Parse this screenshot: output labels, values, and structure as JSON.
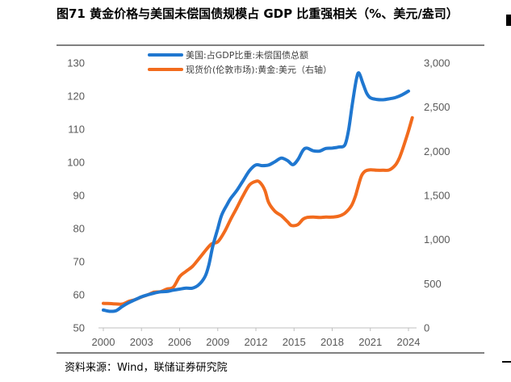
{
  "title": "图71 黄金价格与美国未偿国债规模占 GDP 比重强相关（%、美元/盎司）",
  "source": "资料来源：Wind，联储证券研究院",
  "chart_data": {
    "type": "line",
    "x_ticks": [
      "2000",
      "2003",
      "2006",
      "2009",
      "2012",
      "2015",
      "2018",
      "2021",
      "2024"
    ],
    "xlim": [
      2000,
      2024.3
    ],
    "ylim_left": [
      50,
      130
    ],
    "ylim_right": [
      0,
      3000
    ],
    "left_ticks": [
      "50",
      "60",
      "70",
      "80",
      "90",
      "100",
      "110",
      "120",
      "130"
    ],
    "right_ticks": [
      "0",
      "500",
      "1,000",
      "1,500",
      "2,000",
      "2,500",
      "3,000"
    ],
    "series": [
      {
        "name": "美国:占GDP比重:未偿国债总额",
        "axis": "left",
        "color": "#1f77d0",
        "points": [
          [
            2000.0,
            55.4
          ],
          [
            2000.5,
            55.0
          ],
          [
            2001.0,
            55.2
          ],
          [
            2001.5,
            56.5
          ],
          [
            2002.0,
            57.6
          ],
          [
            2002.5,
            58.5
          ],
          [
            2003.0,
            59.4
          ],
          [
            2003.5,
            60.0
          ],
          [
            2004.0,
            60.5
          ],
          [
            2004.5,
            60.9
          ],
          [
            2005.0,
            61.0
          ],
          [
            2005.5,
            61.4
          ],
          [
            2006.0,
            61.7
          ],
          [
            2006.5,
            62.0
          ],
          [
            2007.0,
            62.0
          ],
          [
            2007.5,
            63.0
          ],
          [
            2008.0,
            65.5
          ],
          [
            2008.3,
            69.0
          ],
          [
            2008.6,
            74.5
          ],
          [
            2009.0,
            80.0
          ],
          [
            2009.3,
            84.0
          ],
          [
            2009.7,
            87.0
          ],
          [
            2010.0,
            89.0
          ],
          [
            2010.5,
            91.5
          ],
          [
            2011.0,
            94.5
          ],
          [
            2011.5,
            97.5
          ],
          [
            2012.0,
            99.2
          ],
          [
            2012.5,
            99.0
          ],
          [
            2013.0,
            99.2
          ],
          [
            2013.5,
            100.2
          ],
          [
            2014.0,
            101.3
          ],
          [
            2014.5,
            100.5
          ],
          [
            2014.9,
            99.3
          ],
          [
            2015.3,
            100.8
          ],
          [
            2015.7,
            103.6
          ],
          [
            2016.0,
            104.3
          ],
          [
            2016.5,
            103.5
          ],
          [
            2017.0,
            103.4
          ],
          [
            2017.5,
            104.2
          ],
          [
            2018.0,
            104.3
          ],
          [
            2018.5,
            104.6
          ],
          [
            2019.0,
            105.3
          ],
          [
            2019.3,
            110.0
          ],
          [
            2019.6,
            118.0
          ],
          [
            2019.9,
            125.0
          ],
          [
            2020.1,
            127.0
          ],
          [
            2020.4,
            124.0
          ],
          [
            2020.7,
            121.0
          ],
          [
            2021.0,
            119.5
          ],
          [
            2021.5,
            119.0
          ],
          [
            2022.0,
            118.9
          ],
          [
            2022.5,
            119.2
          ],
          [
            2023.0,
            119.6
          ],
          [
            2023.5,
            120.4
          ],
          [
            2024.0,
            121.5
          ]
        ]
      },
      {
        "name": "现货价(伦敦市场):黄金:美元（右轴）",
        "axis": "right",
        "color": "#f26b1d",
        "points": [
          [
            2000.0,
            278
          ],
          [
            2000.5,
            275
          ],
          [
            2001.0,
            271
          ],
          [
            2001.5,
            270
          ],
          [
            2002.0,
            300
          ],
          [
            2002.5,
            320
          ],
          [
            2003.0,
            350
          ],
          [
            2003.5,
            375
          ],
          [
            2004.0,
            405
          ],
          [
            2004.5,
            410
          ],
          [
            2005.0,
            440
          ],
          [
            2005.5,
            460
          ],
          [
            2006.0,
            580
          ],
          [
            2006.5,
            640
          ],
          [
            2007.0,
            695
          ],
          [
            2007.5,
            780
          ],
          [
            2008.0,
            870
          ],
          [
            2008.5,
            950
          ],
          [
            2009.0,
            975
          ],
          [
            2009.5,
            1080
          ],
          [
            2010.0,
            1225
          ],
          [
            2010.5,
            1360
          ],
          [
            2011.0,
            1500
          ],
          [
            2011.5,
            1620
          ],
          [
            2012.0,
            1660
          ],
          [
            2012.3,
            1650
          ],
          [
            2012.7,
            1560
          ],
          [
            2013.0,
            1420
          ],
          [
            2013.5,
            1320
          ],
          [
            2014.0,
            1270
          ],
          [
            2014.5,
            1200
          ],
          [
            2014.8,
            1160
          ],
          [
            2015.3,
            1170
          ],
          [
            2015.7,
            1230
          ],
          [
            2016.0,
            1250
          ],
          [
            2016.5,
            1255
          ],
          [
            2017.0,
            1250
          ],
          [
            2017.5,
            1255
          ],
          [
            2018.0,
            1255
          ],
          [
            2018.5,
            1265
          ],
          [
            2019.0,
            1300
          ],
          [
            2019.5,
            1380
          ],
          [
            2019.8,
            1480
          ],
          [
            2020.0,
            1580
          ],
          [
            2020.3,
            1720
          ],
          [
            2020.6,
            1775
          ],
          [
            2021.0,
            1790
          ],
          [
            2021.5,
            1785
          ],
          [
            2022.0,
            1785
          ],
          [
            2022.5,
            1790
          ],
          [
            2023.0,
            1850
          ],
          [
            2023.3,
            1930
          ],
          [
            2023.6,
            2050
          ],
          [
            2024.0,
            2230
          ],
          [
            2024.3,
            2380
          ]
        ]
      }
    ]
  }
}
